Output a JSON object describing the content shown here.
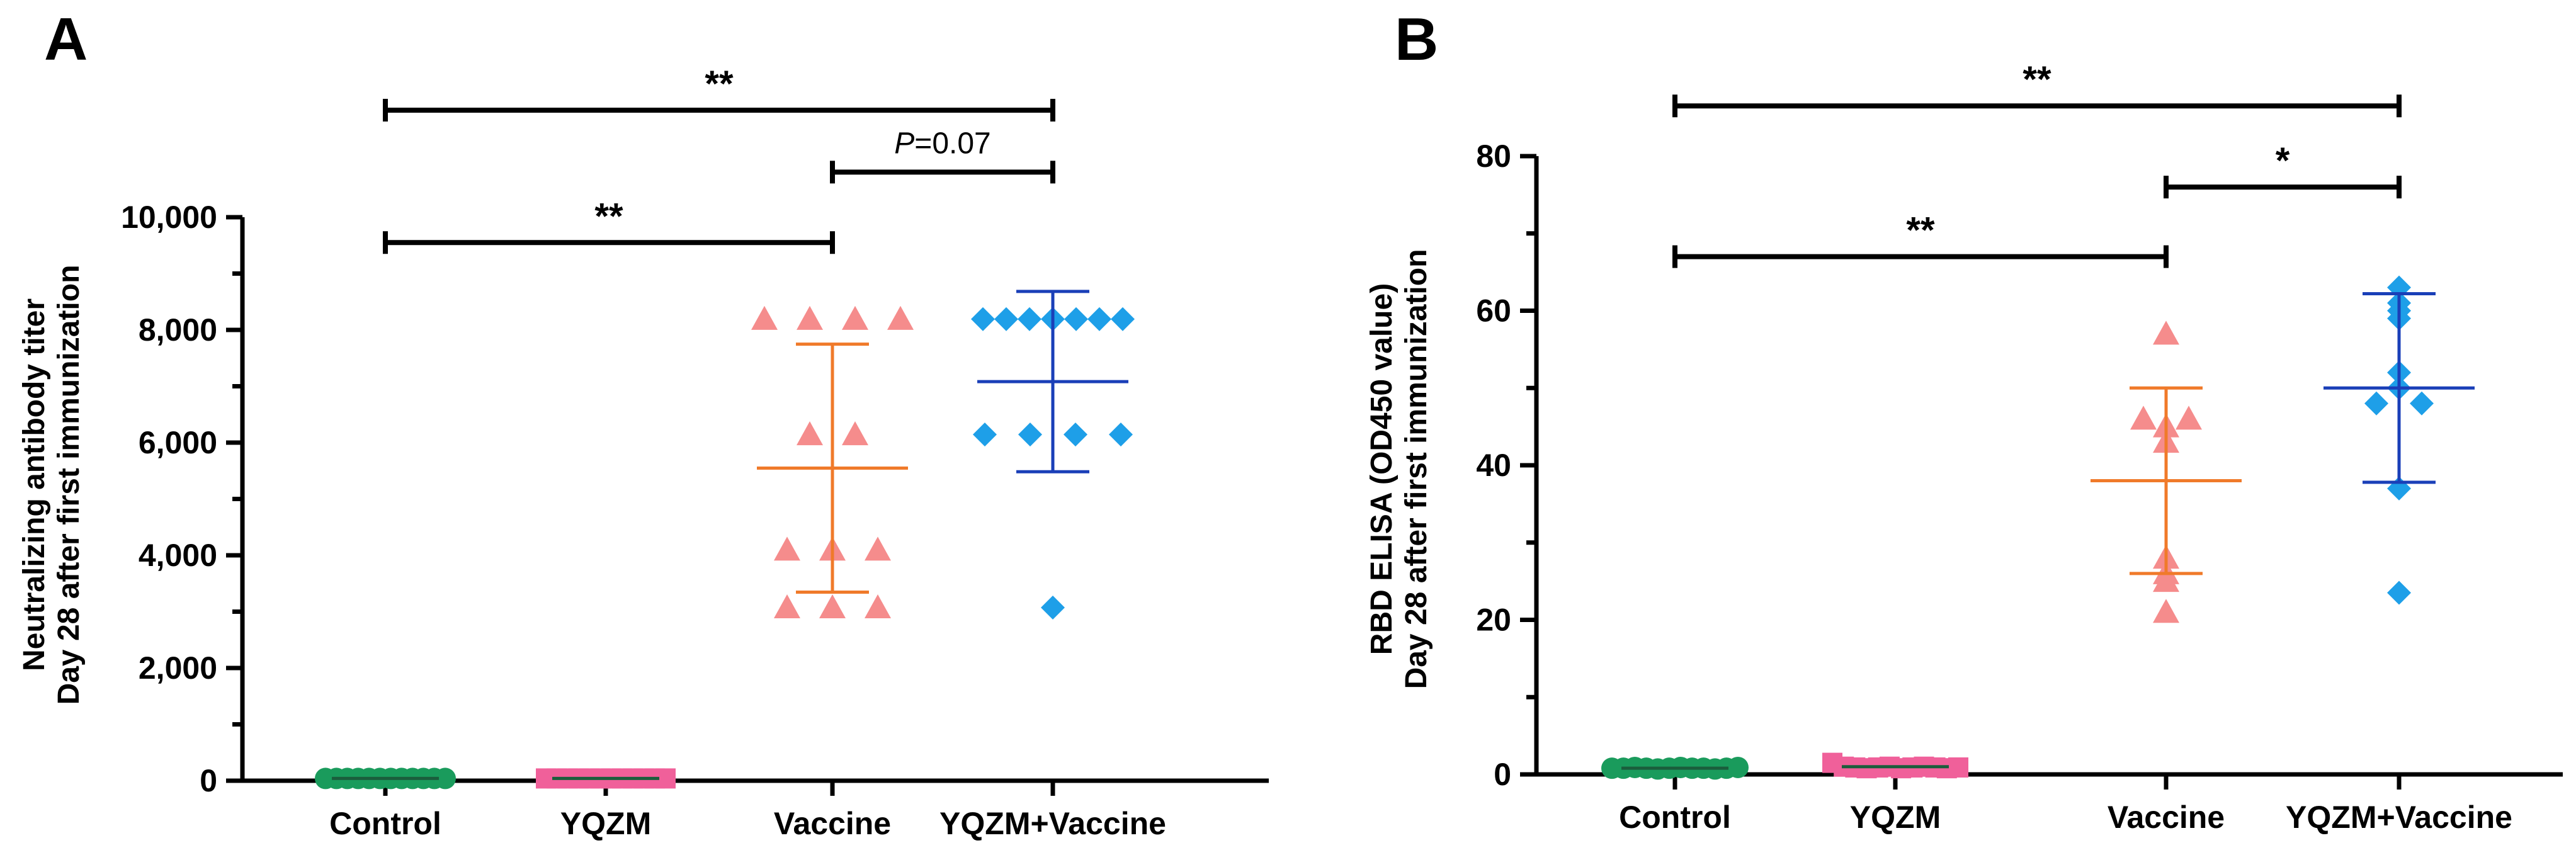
{
  "chart_data": [
    {
      "panel": "A",
      "type": "scatter",
      "ylabel_lines": [
        "Neutralizing antibody titer",
        "Day 28 after first immunization"
      ],
      "ylim": [
        0,
        10000
      ],
      "yticks": [
        0,
        2000,
        4000,
        6000,
        8000,
        10000
      ],
      "ytick_labels": [
        "0",
        "2,000",
        "4,000",
        "6,000",
        "8,000",
        "10,000"
      ],
      "categories": [
        "Control",
        "YQZM",
        "Vaccine",
        "YQZM+Vaccine"
      ],
      "series": [
        {
          "marker": "circle",
          "color": "#1a9b5c",
          "points": [
            40,
            40,
            40,
            40,
            40,
            40,
            40,
            40,
            40,
            40,
            40,
            40
          ],
          "mean": 40,
          "sd": 0
        },
        {
          "marker": "square",
          "color": "#f0609a",
          "points": [
            40,
            40,
            40,
            40,
            40,
            40,
            40,
            40,
            40,
            40,
            40,
            40
          ],
          "mean": 40,
          "sd": 0
        },
        {
          "marker": "triangle",
          "color": "#f58c8c",
          "points": [
            8192,
            8192,
            8192,
            8192,
            6144,
            6144,
            4096,
            4096,
            4096,
            3072,
            3072,
            3072
          ],
          "mean": 5547,
          "sd": 2200,
          "error_color": "#f07a2a"
        },
        {
          "marker": "diamond",
          "color": "#1e9fe8",
          "points": [
            8192,
            8192,
            8192,
            8192,
            8192,
            8192,
            8192,
            6144,
            6144,
            6144,
            6144,
            3072
          ],
          "mean": 7083,
          "sd": 1600,
          "error_color": "#1a3fb8"
        }
      ],
      "comparisons": [
        {
          "from": 0,
          "to": 3,
          "label": "**",
          "y": 11900
        },
        {
          "from": 2,
          "to": 3,
          "label_prefix": "P",
          "label": "=0.07",
          "y": 10800
        },
        {
          "from": 0,
          "to": 2,
          "label": "**",
          "y": 9550
        }
      ]
    },
    {
      "panel": "B",
      "type": "scatter",
      "ylabel_lines": [
        "RBD ELISA (OD450 value)",
        "Day 28 after first immunization"
      ],
      "ylim": [
        0,
        80
      ],
      "yticks": [
        0,
        20,
        40,
        60,
        80
      ],
      "ytick_labels": [
        "0",
        "20",
        "40",
        "60",
        "80"
      ],
      "categories": [
        "Control",
        "YQZM",
        "Vaccine",
        "YQZM+Vaccine"
      ],
      "series": [
        {
          "marker": "circle",
          "color": "#1a9b5c",
          "points": [
            0.8,
            0.8,
            0.9,
            0.8,
            0.7,
            0.8,
            0.9,
            0.8,
            0.8,
            0.7,
            0.8,
            0.9
          ],
          "mean": 0.8,
          "sd": 0
        },
        {
          "marker": "square",
          "color": "#f0609a",
          "points": [
            1.5,
            1.0,
            0.9,
            0.8,
            0.9,
            1.0,
            0.8,
            0.9,
            1.0,
            0.9,
            0.8,
            0.9
          ],
          "mean": 1.0,
          "sd": 0
        },
        {
          "marker": "triangle",
          "color": "#f58c8c",
          "points": [
            57,
            46,
            46,
            45,
            43,
            28,
            26,
            25,
            21
          ],
          "mean": 38,
          "sd": 12,
          "error_color": "#f07a2a"
        },
        {
          "marker": "diamond",
          "color": "#1e9fe8",
          "points": [
            63,
            61,
            60,
            59,
            52,
            50,
            48,
            48,
            37,
            23.5
          ],
          "mean": 50,
          "sd": 12.2,
          "error_color": "#1a3fb8"
        }
      ],
      "comparisons": [
        {
          "from": 0,
          "to": 3,
          "label": "**",
          "y": 86.5
        },
        {
          "from": 2,
          "to": 3,
          "label": "*",
          "y": 76
        },
        {
          "from": 0,
          "to": 2,
          "label": "**",
          "y": 67
        }
      ]
    }
  ]
}
